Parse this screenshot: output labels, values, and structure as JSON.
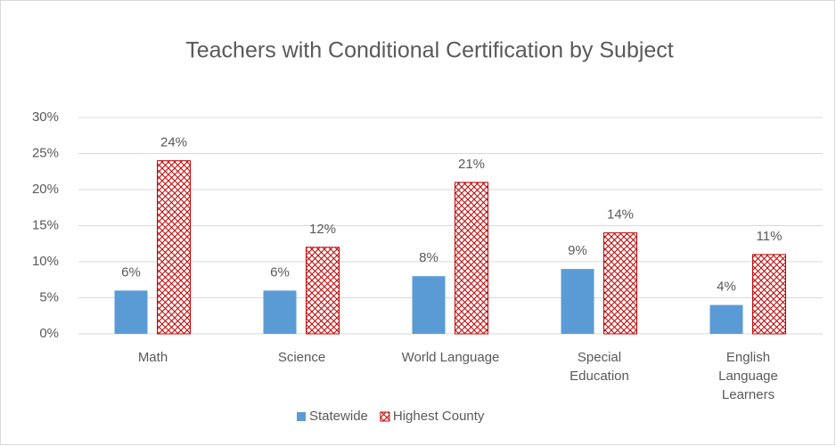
{
  "chart_data": {
    "type": "bar",
    "title": "Teachers with Conditional Certification by Subject",
    "categories": [
      "Math",
      "Science",
      "World Language",
      "Special Education",
      "English Language Learners"
    ],
    "series": [
      {
        "name": "Statewide",
        "color": "#5b9bd5",
        "fill": "solid",
        "values": [
          6,
          6,
          8,
          9,
          4
        ],
        "value_labels": [
          "6%",
          "6%",
          "8%",
          "9%",
          "4%"
        ]
      },
      {
        "name": "Highest County",
        "color": "#c00000",
        "fill": "crosshatch",
        "values": [
          24,
          12,
          21,
          14,
          11
        ],
        "value_labels": [
          "24%",
          "12%",
          "21%",
          "14%",
          "11%"
        ]
      }
    ],
    "ylim": [
      0,
      30
    ],
    "yticks": [
      {
        "value": 0,
        "label": "0%"
      },
      {
        "value": 5,
        "label": "5%"
      },
      {
        "value": 10,
        "label": "10%"
      },
      {
        "value": 15,
        "label": "15%"
      },
      {
        "value": 20,
        "label": "20%"
      },
      {
        "value": 25,
        "label": "25%"
      },
      {
        "value": 30,
        "label": "30%"
      }
    ],
    "grid": true,
    "legend": "bottom"
  }
}
